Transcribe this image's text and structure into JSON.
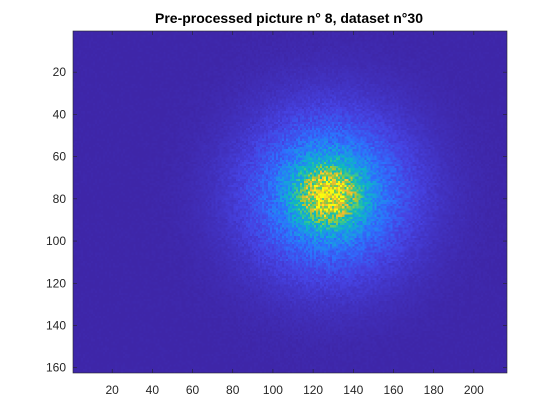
{
  "chart_data": {
    "type": "heatmap",
    "title": "Pre-processed picture n° 8, dataset n°30",
    "xlabel": "",
    "ylabel": "",
    "xlim": [
      0.5,
      216.5
    ],
    "ylim": [
      0.5,
      162.5
    ],
    "y_reversed": true,
    "x_ticks": [
      20,
      40,
      60,
      80,
      100,
      120,
      140,
      160,
      180,
      200
    ],
    "y_ticks": [
      20,
      40,
      60,
      80,
      100,
      120,
      140,
      160
    ],
    "x_tick_labels": [
      "20",
      "40",
      "60",
      "80",
      "100",
      "120",
      "140",
      "160",
      "180",
      "200"
    ],
    "y_tick_labels": [
      "20",
      "40",
      "60",
      "80",
      "100",
      "120",
      "140",
      "160"
    ],
    "colormap": "parula",
    "background_color": "#3e26a8",
    "spot": {
      "center_x": 128,
      "center_y": 78,
      "sigma_x": 32,
      "sigma_y": 30,
      "peak_intensity": 1.0,
      "peak_color": "#f9fb0e"
    },
    "grid": false,
    "legend": "none"
  }
}
